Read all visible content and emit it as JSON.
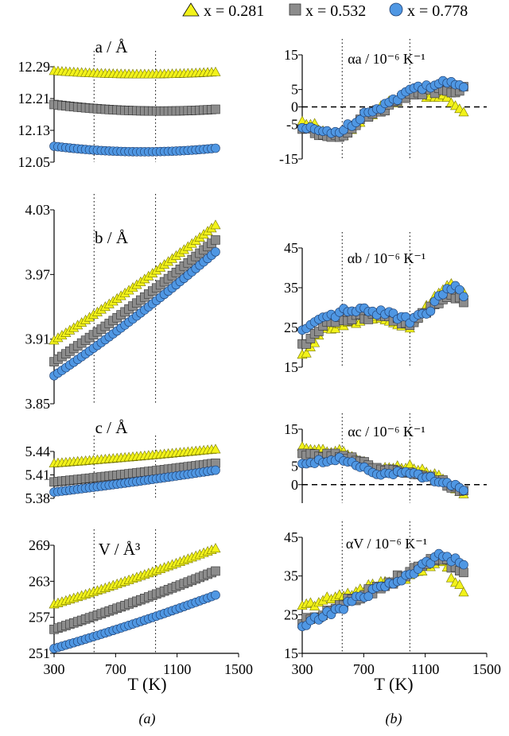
{
  "legend": [
    {
      "label": "x = 0.281",
      "marker": "triangle",
      "color": "#f2f21a"
    },
    {
      "label": "x = 0.532",
      "marker": "square",
      "color": "#8c8c8c"
    },
    {
      "label": "x = 0.778",
      "marker": "circle",
      "color": "#4f97e3"
    }
  ],
  "xlabel": "T (K)",
  "caption_a": "(a)",
  "caption_b": "(b)",
  "chart_data": [
    {
      "type": "scatter",
      "title": "a / Å",
      "xlabel": "T (K)",
      "ylabel": "a / Å",
      "xlim": [
        300,
        1500
      ],
      "ylim": [
        12.05,
        12.29
      ],
      "xticks": [
        300,
        700,
        1100,
        1500
      ],
      "yticks": [
        "12.05",
        "12.13",
        "12.21",
        "12.29"
      ],
      "vlines": [
        560,
        960
      ],
      "series": [
        {
          "name": "x = 0.281",
          "y_start": 12.28,
          "y_mid": 12.265,
          "y_end": 12.277
        },
        {
          "name": "x = 0.532",
          "y_start": 12.195,
          "y_mid": 12.17,
          "y_end": 12.183
        },
        {
          "name": "x = 0.778",
          "y_start": 12.09,
          "y_mid": 12.065,
          "y_end": 12.085
        }
      ]
    },
    {
      "type": "scatter",
      "title": "b / Å",
      "xlabel": "T (K)",
      "ylabel": "b / Å",
      "xlim": [
        300,
        1500
      ],
      "ylim": [
        3.85,
        4.03
      ],
      "xticks": [
        300,
        700,
        1100,
        1500
      ],
      "yticks": [
        "3.85",
        "3.91",
        "3.97",
        "4.03"
      ],
      "vlines": [
        560,
        960
      ],
      "series": [
        {
          "name": "x = 0.281",
          "y_start": 3.909,
          "y_end": 4.016
        },
        {
          "name": "x = 0.532",
          "y_start": 3.889,
          "y_end": 4.002
        },
        {
          "name": "x = 0.778",
          "y_start": 3.876,
          "y_end": 3.991
        }
      ]
    },
    {
      "type": "scatter",
      "title": "c / Å",
      "xlabel": "T (K)",
      "ylabel": "c / Å",
      "xlim": [
        300,
        1500
      ],
      "ylim": [
        5.38,
        5.44
      ],
      "xticks": [
        300,
        700,
        1100,
        1500
      ],
      "yticks": [
        "5.38",
        "5.41",
        "5.44"
      ],
      "vlines": [
        560,
        960
      ],
      "series": [
        {
          "name": "x = 0.281",
          "y_start": 5.425,
          "y_end": 5.443
        },
        {
          "name": "x = 0.532",
          "y_start": 5.401,
          "y_end": 5.425
        },
        {
          "name": "x = 0.778",
          "y_start": 5.388,
          "y_end": 5.416
        }
      ]
    },
    {
      "type": "scatter",
      "title": "V / Å³",
      "xlabel": "T (K)",
      "ylabel": "V / Å³",
      "xlim": [
        300,
        1500
      ],
      "ylim": [
        251,
        269
      ],
      "xticks": [
        300,
        700,
        1100,
        1500
      ],
      "yticks": [
        "251",
        "257",
        "263",
        "269"
      ],
      "vlines": [
        560,
        960
      ],
      "series": [
        {
          "name": "x = 0.281",
          "y_start": 259.2,
          "y_end": 268.5
        },
        {
          "name": "x = 0.532",
          "y_start": 255.0,
          "y_end": 264.7
        },
        {
          "name": "x = 0.778",
          "y_start": 251.8,
          "y_end": 260.7
        }
      ]
    },
    {
      "type": "scatter",
      "title": "αa / 10⁻⁶ K⁻¹",
      "xlabel": "T (K)",
      "ylabel": "αa / 10⁻⁶ K⁻¹",
      "xlim": [
        300,
        1500
      ],
      "ylim": [
        -15,
        15
      ],
      "xticks": [
        300,
        700,
        1100,
        1500
      ],
      "yticks": [
        "-15",
        "-5",
        "0",
        "5",
        "15"
      ],
      "vlines": [
        560,
        1000
      ],
      "hline": 0,
      "series": [
        {
          "name": "x = 0.281",
          "keypoints": [
            [
              300,
              -4
            ],
            [
              400,
              -6
            ],
            [
              560,
              -8
            ],
            [
              700,
              -3
            ],
            [
              900,
              2
            ],
            [
              1000,
              4
            ],
            [
              1200,
              3
            ],
            [
              1350,
              -1
            ]
          ]
        },
        {
          "name": "x = 0.532",
          "keypoints": [
            [
              300,
              -6
            ],
            [
              400,
              -8
            ],
            [
              560,
              -8
            ],
            [
              700,
              -3
            ],
            [
              900,
              1
            ],
            [
              1000,
              4
            ],
            [
              1200,
              5
            ],
            [
              1350,
              5
            ]
          ]
        },
        {
          "name": "x = 0.778",
          "keypoints": [
            [
              300,
              -6
            ],
            [
              400,
              -7
            ],
            [
              560,
              -7
            ],
            [
              700,
              -2
            ],
            [
              900,
              2
            ],
            [
              1000,
              5
            ],
            [
              1200,
              7
            ],
            [
              1350,
              6
            ]
          ]
        }
      ]
    },
    {
      "type": "scatter",
      "title": "αb / 10⁻⁶ K⁻¹",
      "xlabel": "T (K)",
      "ylabel": "αb / 10⁻⁶ K⁻¹",
      "xlim": [
        300,
        1500
      ],
      "ylim": [
        15,
        45
      ],
      "xticks": [
        300,
        700,
        1100,
        1500
      ],
      "yticks": [
        "15",
        "25",
        "35",
        "45"
      ],
      "vlines": [
        560,
        1000
      ],
      "series": [
        {
          "name": "x = 0.281",
          "keypoints": [
            [
              300,
              18
            ],
            [
              450,
              25
            ],
            [
              560,
              26
            ],
            [
              800,
              27
            ],
            [
              1000,
              25
            ],
            [
              1150,
              32
            ],
            [
              1250,
              36
            ],
            [
              1350,
              34
            ]
          ]
        },
        {
          "name": "x = 0.532",
          "keypoints": [
            [
              300,
              20
            ],
            [
              450,
              26
            ],
            [
              560,
              27
            ],
            [
              800,
              28
            ],
            [
              1000,
              26
            ],
            [
              1150,
              30
            ],
            [
              1250,
              33
            ],
            [
              1350,
              32
            ]
          ]
        },
        {
          "name": "x = 0.778",
          "keypoints": [
            [
              300,
              24
            ],
            [
              450,
              27
            ],
            [
              560,
              29
            ],
            [
              800,
              29
            ],
            [
              1000,
              27
            ],
            [
              1150,
              30
            ],
            [
              1250,
              36
            ],
            [
              1350,
              33
            ]
          ]
        }
      ]
    },
    {
      "type": "scatter",
      "title": "αc / 10⁻⁶ K⁻¹",
      "xlabel": "T (K)",
      "ylabel": "αc / 10⁻⁶ K⁻¹",
      "xlim": [
        300,
        1500
      ],
      "ylim": [
        -5,
        15
      ],
      "xticks": [
        300,
        700,
        1100,
        1500
      ],
      "yticks": [
        "0",
        "5",
        "15"
      ],
      "vlines": [
        560,
        1000
      ],
      "hline": 0,
      "series": [
        {
          "name": "x = 0.281",
          "keypoints": [
            [
              300,
              10
            ],
            [
              560,
              9
            ],
            [
              800,
              4
            ],
            [
              1000,
              5
            ],
            [
              1200,
              2
            ],
            [
              1350,
              -3
            ]
          ]
        },
        {
          "name": "x = 0.532",
          "keypoints": [
            [
              300,
              8
            ],
            [
              560,
              8
            ],
            [
              800,
              4
            ],
            [
              1000,
              3
            ],
            [
              1200,
              1
            ],
            [
              1350,
              -2
            ]
          ]
        },
        {
          "name": "x = 0.778",
          "keypoints": [
            [
              300,
              6
            ],
            [
              560,
              7
            ],
            [
              800,
              3
            ],
            [
              1000,
              3
            ],
            [
              1200,
              1
            ],
            [
              1350,
              -1
            ]
          ]
        }
      ]
    },
    {
      "type": "scatter",
      "title": "αV / 10⁻⁶ K⁻¹",
      "xlabel": "T (K)",
      "ylabel": "αV / 10⁻⁶ K⁻¹",
      "xlim": [
        300,
        1500
      ],
      "ylim": [
        15,
        45
      ],
      "xticks": [
        300,
        700,
        1100,
        1500
      ],
      "yticks": [
        "15",
        "25",
        "35",
        "45"
      ],
      "vlines": [
        560,
        1000
      ],
      "series": [
        {
          "name": "x = 0.281",
          "keypoints": [
            [
              300,
              27
            ],
            [
              560,
              30
            ],
            [
              800,
              33
            ],
            [
              1000,
              35
            ],
            [
              1200,
              39
            ],
            [
              1350,
              31
            ]
          ]
        },
        {
          "name": "x = 0.532",
          "keypoints": [
            [
              300,
              23
            ],
            [
              560,
              28
            ],
            [
              800,
              32
            ],
            [
              1000,
              36
            ],
            [
              1200,
              40
            ],
            [
              1350,
              35
            ]
          ]
        },
        {
          "name": "x = 0.778",
          "keypoints": [
            [
              300,
              22
            ],
            [
              560,
              27
            ],
            [
              800,
              32
            ],
            [
              1000,
              35
            ],
            [
              1200,
              41
            ],
            [
              1350,
              38
            ]
          ]
        }
      ]
    }
  ]
}
